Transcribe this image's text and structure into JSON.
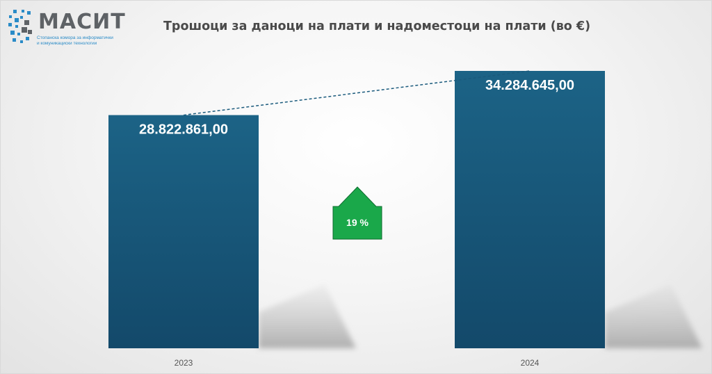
{
  "logo": {
    "name": "МАСИТ",
    "tagline_line1": "Стопанска комора за информатички",
    "tagline_line2": "и комуникациски технологии"
  },
  "chart_data": {
    "type": "bar",
    "title": "Трошоци за даноци на плати и надоместоци на плати (во €)",
    "categories": [
      "2023",
      "2024"
    ],
    "values": [
      28822861.0,
      34284645.0
    ],
    "value_labels": [
      "28.822.861,00",
      "34.284.645,00"
    ],
    "ylim": [
      0,
      34284645
    ],
    "grid": false,
    "bar_color": "#1a5a7c",
    "change": {
      "label": "19 %",
      "direction": "up",
      "color": "#1aa84a"
    }
  }
}
